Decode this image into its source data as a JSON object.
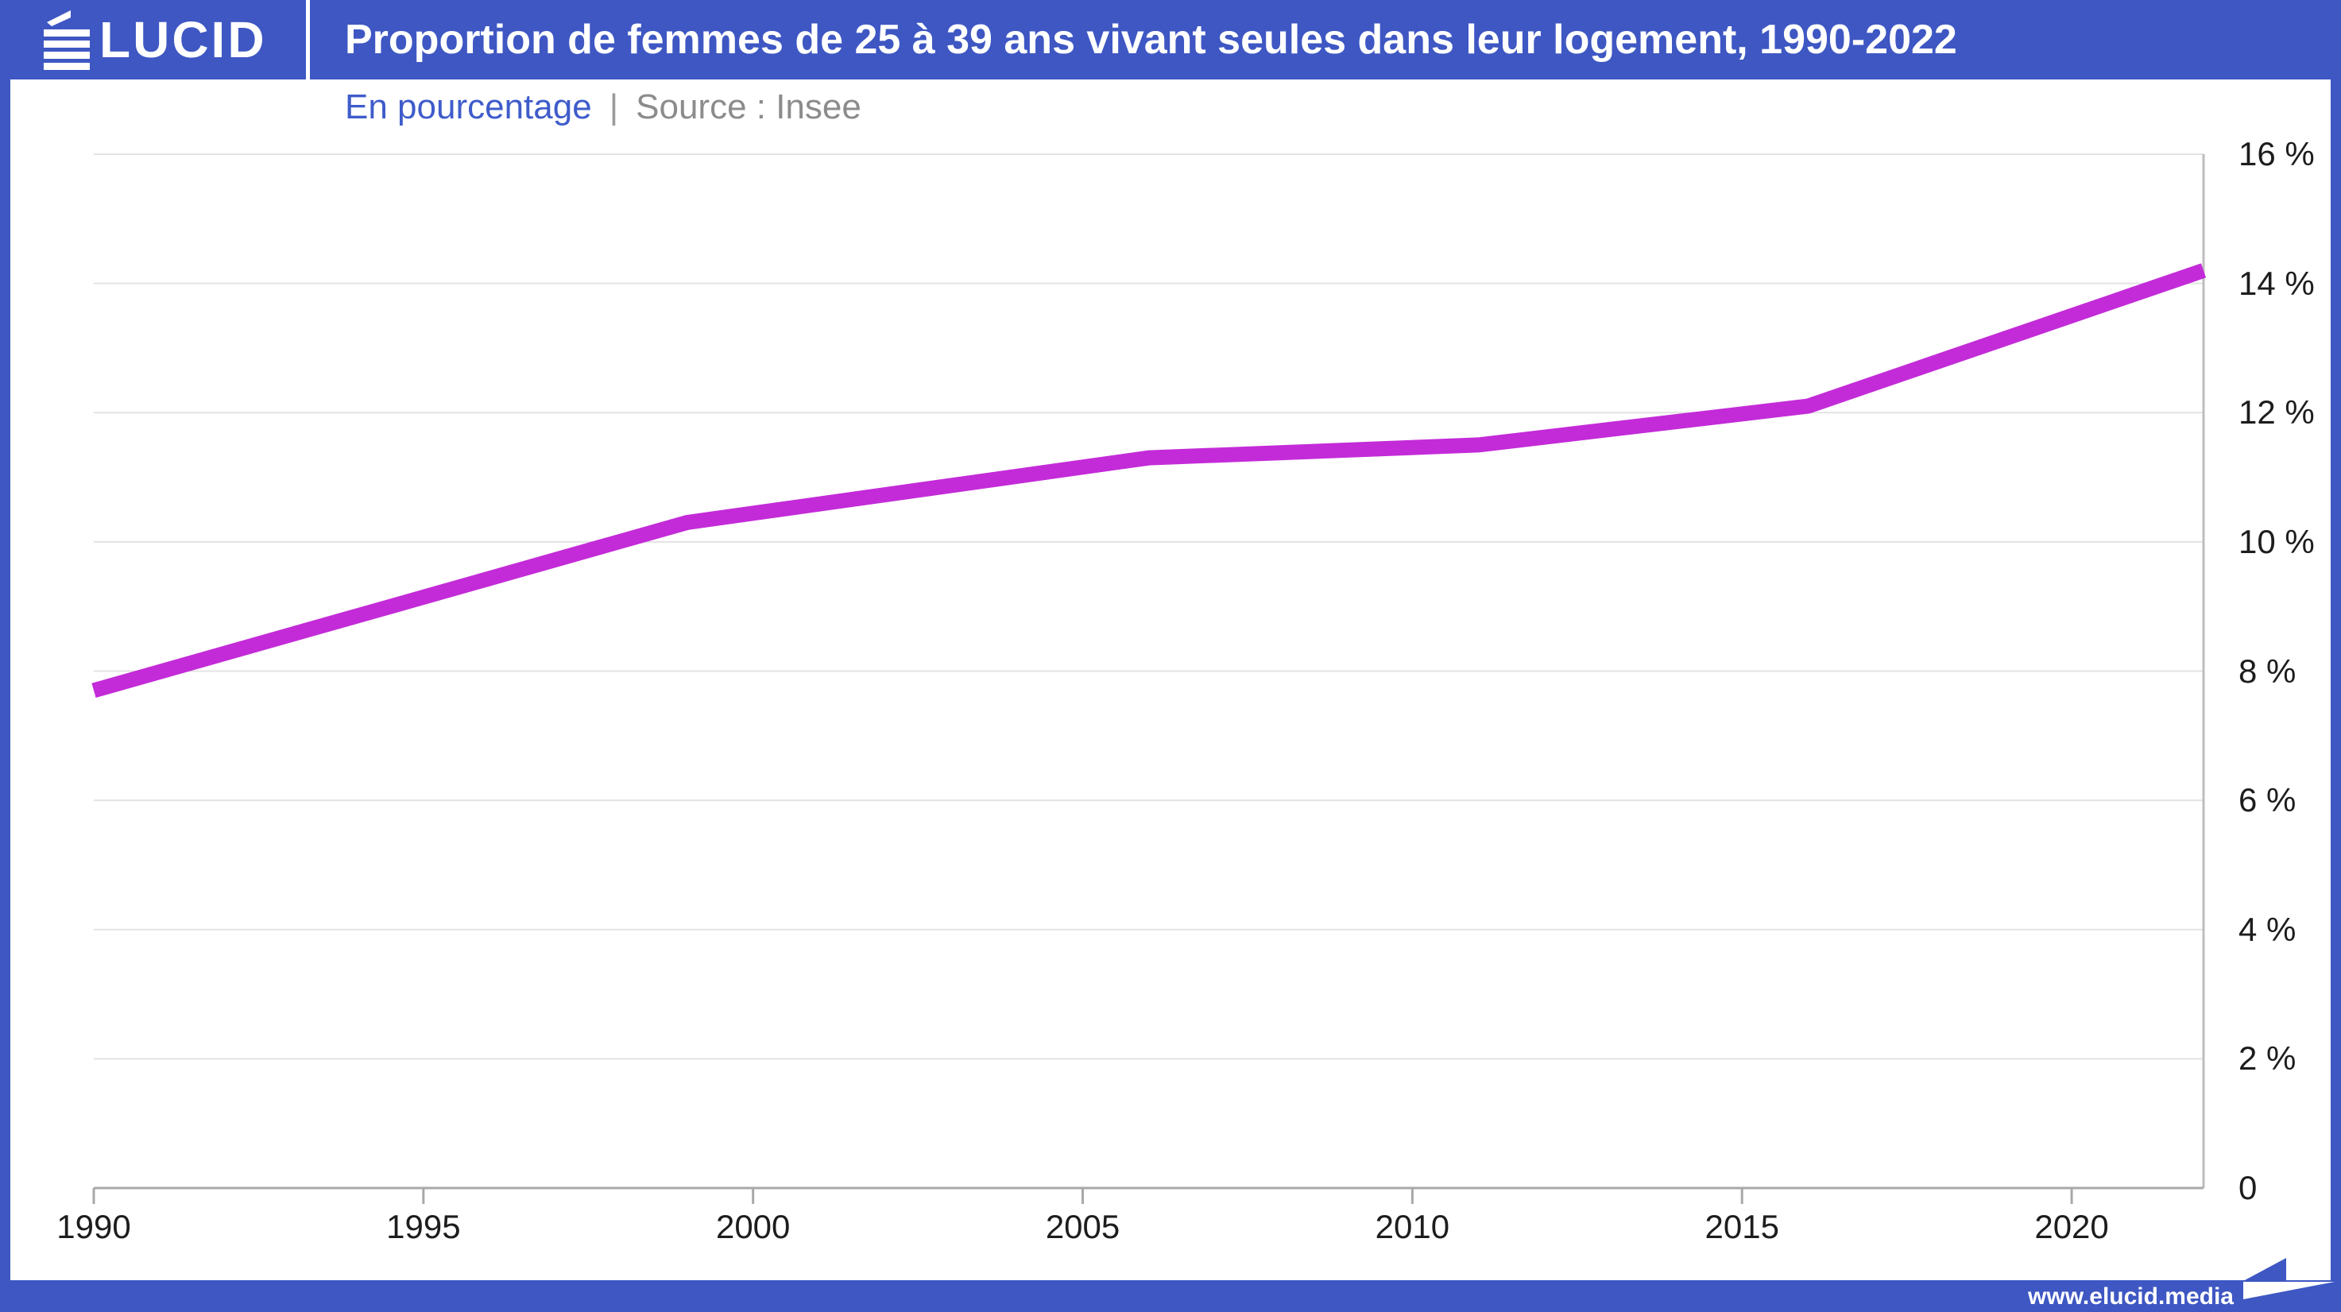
{
  "header": {
    "brand": "ÉLUCID",
    "brand_rest": "LUCID",
    "title": "Proportion de femmes de 25 à 39 ans vivant seules dans leur logement, 1990-2022"
  },
  "subtitle": {
    "unit": "En pourcentage",
    "separator": "|",
    "source": "Source : Insee"
  },
  "footer": {
    "url": "www.elucid.media"
  },
  "colors": {
    "brand_blue": "#3e57c3",
    "line_magenta": "#c32bd8",
    "subtitle_blue": "#3f5ccb",
    "subtitle_gray": "#8c8c8c",
    "axis_text": "#1d1d1d",
    "gridline": "#e3e3e3",
    "axis_line": "#a8a8a8",
    "plot_border": "#bdbdbd"
  },
  "chart_data": {
    "type": "line",
    "title": "Proportion de femmes de 25 à 39 ans vivant seules dans leur logement, 1990-2022",
    "unit_label": "En pourcentage",
    "source": "Insee",
    "x_range": [
      1990,
      2022
    ],
    "y_range": [
      0,
      16
    ],
    "x_ticks": [
      1990,
      1995,
      2000,
      2005,
      2010,
      2015,
      2020
    ],
    "y_ticks": [
      0,
      2,
      4,
      6,
      8,
      10,
      12,
      14,
      16
    ],
    "y_tick_labels": [
      "0",
      "2 %",
      "4 %",
      "6 %",
      "8 %",
      "10 %",
      "12 %",
      "14 %",
      "16 %"
    ],
    "grid": "horizontal gridlines only",
    "legend": "none",
    "series": [
      {
        "name": "Femmes de 25 à 39 ans vivant seules",
        "color": "#c32bd8",
        "points": [
          {
            "year": 1990,
            "value": 7.7
          },
          {
            "year": 1999,
            "value": 10.3
          },
          {
            "year": 2006,
            "value": 11.3
          },
          {
            "year": 2011,
            "value": 11.5
          },
          {
            "year": 2016,
            "value": 12.1
          },
          {
            "year": 2022,
            "value": 14.2
          }
        ]
      }
    ]
  }
}
